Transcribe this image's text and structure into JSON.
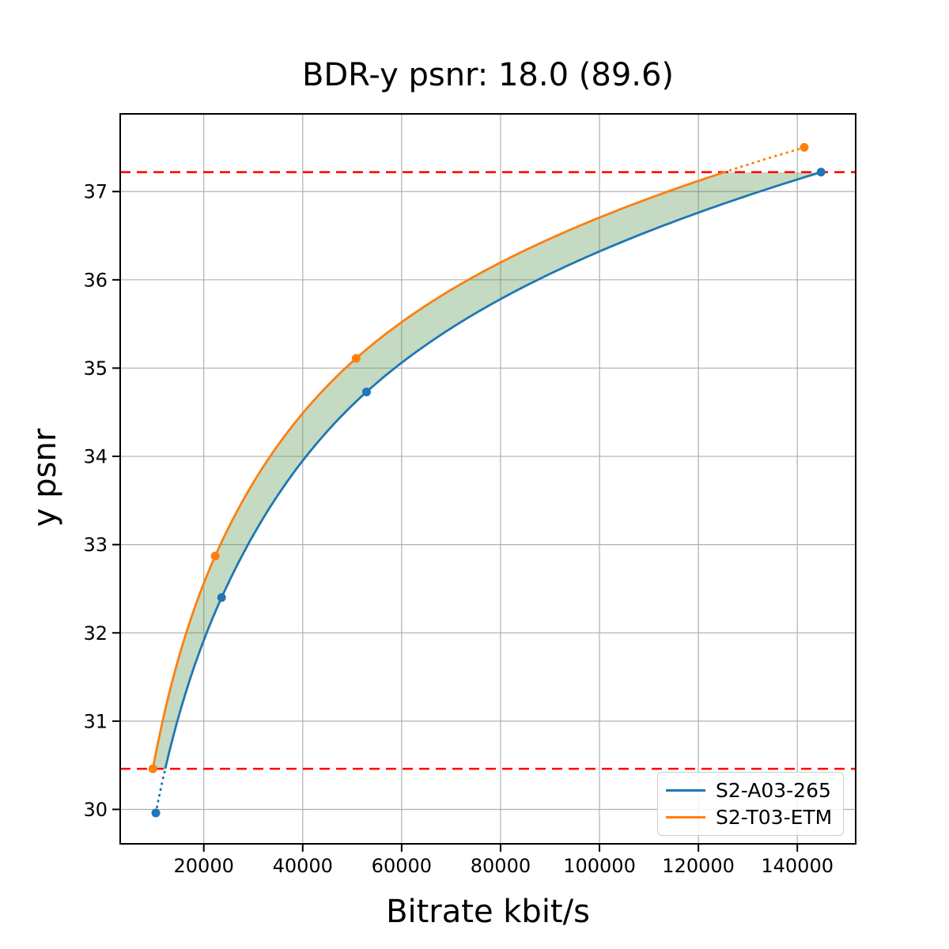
{
  "chart_data": {
    "type": "line",
    "title": "BDR-y psnr: 18.0 (89.6)",
    "xlabel": "Bitrate kbit/s",
    "ylabel": "y psnr",
    "xlim": [
      3100,
      151800
    ],
    "ylim": [
      29.61,
      37.88
    ],
    "xticks": [
      20000,
      40000,
      60000,
      80000,
      100000,
      120000,
      140000
    ],
    "yticks": [
      30,
      31,
      32,
      33,
      34,
      35,
      36,
      37
    ],
    "grid": true,
    "grid_color": "#b0b0b0",
    "interp": "pchip-log-x",
    "series": [
      {
        "name": "S2-A03-265",
        "color": "#1f77b4",
        "points": [
          [
            10300,
            29.96
          ],
          [
            23600,
            32.4
          ],
          [
            52900,
            34.73
          ],
          [
            144800,
            37.22
          ]
        ]
      },
      {
        "name": "S2-T03-ETM",
        "color": "#ff7f0e",
        "points": [
          [
            9700,
            30.46
          ],
          [
            22300,
            32.87
          ],
          [
            50800,
            35.11
          ],
          [
            141400,
            37.5
          ]
        ]
      }
    ],
    "hlines": {
      "values": [
        30.46,
        37.22
      ],
      "color": "#ff0000",
      "style": "dashed"
    },
    "fill_between": {
      "color": "rgba(90,150,80,0.35)",
      "note": "shaded BD overlap region between the two curves"
    },
    "legend": {
      "position": "lower right",
      "entries": [
        "S2-A03-265",
        "S2-T03-ETM"
      ]
    }
  }
}
